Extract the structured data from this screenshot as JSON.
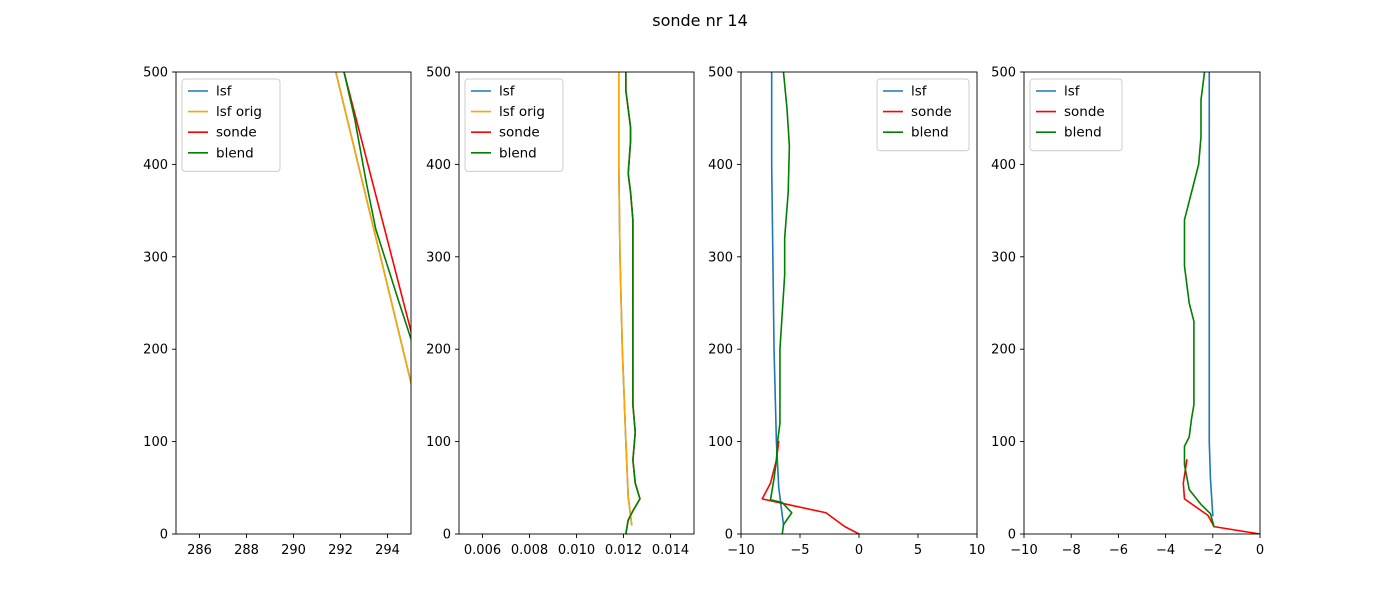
{
  "figure": {
    "title": "sonde nr 14"
  },
  "colors": {
    "lsf": "#1f77b4",
    "lsf_orig": "#ffa500",
    "sonde": "#ff0000",
    "blend": "#008000"
  },
  "chart_data": [
    {
      "type": "line",
      "xlim": [
        285,
        295
      ],
      "ylim": [
        0,
        500
      ],
      "xticks": [
        286,
        288,
        290,
        292,
        294
      ],
      "xtick_labels": [
        "286",
        "288",
        "290",
        "292",
        "294"
      ],
      "yticks": [
        0,
        100,
        200,
        300,
        400,
        500
      ],
      "ytick_labels": [
        "0",
        "100",
        "200",
        "300",
        "400",
        "500"
      ],
      "legend": {
        "location": "upper left",
        "labels": [
          "lsf",
          "lsf orig",
          "sonde",
          "blend"
        ]
      },
      "series": [
        {
          "name": "lsf",
          "color": "#1f77b4",
          "points": [
            [
              295.13,
              150
            ],
            [
              291.8,
              500
            ]
          ]
        },
        {
          "name": "lsf orig",
          "color": "#ffa500",
          "points": [
            [
              295.13,
              150
            ],
            [
              291.8,
              500
            ]
          ]
        },
        {
          "name": "sonde",
          "color": "#ff0000",
          "points": [
            [
              295.4,
              180
            ],
            [
              292.15,
              500
            ]
          ]
        },
        {
          "name": "blend",
          "color": "#008000",
          "points": [
            [
              295.4,
              180
            ],
            [
              294.5,
              250
            ],
            [
              293.5,
              330
            ],
            [
              293.1,
              380
            ],
            [
              292.6,
              450
            ],
            [
              292.15,
              500
            ]
          ]
        }
      ]
    },
    {
      "type": "line",
      "xlim": [
        0.005,
        0.015
      ],
      "ylim": [
        0,
        500
      ],
      "xticks": [
        0.006,
        0.008,
        0.01,
        0.012,
        0.014
      ],
      "xtick_labels": [
        "0.006",
        "0.008",
        "0.010",
        "0.012",
        "0.014"
      ],
      "yticks": [
        0,
        100,
        200,
        300,
        400,
        500
      ],
      "ytick_labels": [
        "0",
        "100",
        "200",
        "300",
        "400",
        "500"
      ],
      "legend": {
        "location": "upper left",
        "labels": [
          "lsf",
          "lsf orig",
          "sonde",
          "blend"
        ]
      },
      "series": [
        {
          "name": "lsf",
          "color": "#1f77b4",
          "points": [
            [
              0.01235,
              10
            ],
            [
              0.0122,
              40
            ],
            [
              0.0121,
              100
            ],
            [
              0.01195,
              200
            ],
            [
              0.01185,
              300
            ],
            [
              0.0118,
              400
            ],
            [
              0.0118,
              500
            ]
          ]
        },
        {
          "name": "lsf orig",
          "color": "#ffa500",
          "points": [
            [
              0.01235,
              10
            ],
            [
              0.0122,
              40
            ],
            [
              0.0121,
              100
            ],
            [
              0.01195,
              200
            ],
            [
              0.01185,
              300
            ],
            [
              0.0118,
              400
            ],
            [
              0.0118,
              500
            ]
          ]
        },
        {
          "name": "sonde",
          "color": "#ff0000",
          "points": [
            [
              0.0121,
              0
            ],
            [
              0.0122,
              15
            ],
            [
              0.0124,
              25
            ],
            [
              0.0127,
              38
            ],
            [
              0.0125,
              55
            ],
            [
              0.0124,
              80
            ],
            [
              0.0125,
              110
            ],
            [
              0.0124,
              140
            ],
            [
              0.0124,
              200
            ],
            [
              0.0124,
              280
            ],
            [
              0.0124,
              340
            ],
            [
              0.0123,
              370
            ],
            [
              0.0122,
              390
            ],
            [
              0.0123,
              425
            ],
            [
              0.0123,
              440
            ],
            [
              0.0122,
              460
            ],
            [
              0.0121,
              480
            ],
            [
              0.0121,
              500
            ]
          ]
        },
        {
          "name": "blend",
          "color": "#008000",
          "points": [
            [
              0.0121,
              0
            ],
            [
              0.0122,
              15
            ],
            [
              0.0124,
              25
            ],
            [
              0.0127,
              38
            ],
            [
              0.0125,
              55
            ],
            [
              0.0124,
              80
            ],
            [
              0.0125,
              110
            ],
            [
              0.0124,
              140
            ],
            [
              0.0124,
              200
            ],
            [
              0.0124,
              280
            ],
            [
              0.0124,
              340
            ],
            [
              0.0123,
              370
            ],
            [
              0.0122,
              390
            ],
            [
              0.0123,
              425
            ],
            [
              0.0123,
              440
            ],
            [
              0.0122,
              460
            ],
            [
              0.0121,
              480
            ],
            [
              0.0121,
              500
            ]
          ]
        }
      ]
    },
    {
      "type": "line",
      "xlim": [
        -10,
        10
      ],
      "ylim": [
        0,
        500
      ],
      "xticks": [
        -10,
        -5,
        0,
        5,
        10
      ],
      "xtick_labels": [
        "−10",
        "−5",
        "0",
        "5",
        "10"
      ],
      "yticks": [
        0,
        100,
        200,
        300,
        400,
        500
      ],
      "ytick_labels": [
        "0",
        "100",
        "200",
        "300",
        "400",
        "500"
      ],
      "legend": {
        "location": "upper right",
        "labels": [
          "lsf",
          "sonde",
          "blend"
        ]
      },
      "series": [
        {
          "name": "lsf",
          "color": "#1f77b4",
          "points": [
            [
              -6.4,
              10
            ],
            [
              -6.8,
              50
            ],
            [
              -7.0,
              100
            ],
            [
              -7.2,
              200
            ],
            [
              -7.3,
              300
            ],
            [
              -7.4,
              400
            ],
            [
              -7.4,
              500
            ]
          ]
        },
        {
          "name": "sonde",
          "color": "#ff0000",
          "points": [
            [
              0,
              0
            ],
            [
              -1.2,
              8
            ],
            [
              -2.8,
              23
            ],
            [
              -6.8,
              34
            ],
            [
              -8.2,
              38
            ],
            [
              -7.5,
              55
            ],
            [
              -7.0,
              80
            ],
            [
              -6.8,
              100
            ]
          ]
        },
        {
          "name": "blend",
          "color": "#008000",
          "points": [
            [
              -6.5,
              0
            ],
            [
              -6.4,
              10
            ],
            [
              -5.7,
              23
            ],
            [
              -6.5,
              34
            ],
            [
              -7.5,
              37
            ],
            [
              -7.2,
              60
            ],
            [
              -7.0,
              80
            ],
            [
              -6.9,
              100
            ],
            [
              -6.7,
              120
            ],
            [
              -6.7,
              200
            ],
            [
              -6.3,
              280
            ],
            [
              -6.3,
              320
            ],
            [
              -6.0,
              370
            ],
            [
              -5.9,
              420
            ],
            [
              -6.1,
              460
            ],
            [
              -6.4,
              500
            ]
          ]
        }
      ]
    },
    {
      "type": "line",
      "xlim": [
        -10,
        0
      ],
      "ylim": [
        0,
        500
      ],
      "xticks": [
        -10,
        -8,
        -6,
        -4,
        -2,
        0
      ],
      "xtick_labels": [
        "−10",
        "−8",
        "−6",
        "−4",
        "−2",
        "0"
      ],
      "yticks": [
        0,
        100,
        200,
        300,
        400,
        500
      ],
      "ytick_labels": [
        "0",
        "100",
        "200",
        "300",
        "400",
        "500"
      ],
      "legend": {
        "location": "upper left",
        "labels": [
          "lsf",
          "sonde",
          "blend"
        ]
      },
      "series": [
        {
          "name": "lsf",
          "color": "#1f77b4",
          "points": [
            [
              -2.0,
              20
            ],
            [
              -2.1,
              60
            ],
            [
              -2.15,
              100
            ],
            [
              -2.15,
              200
            ],
            [
              -2.15,
              300
            ],
            [
              -2.15,
              400
            ],
            [
              -2.15,
              500
            ]
          ]
        },
        {
          "name": "sonde",
          "color": "#ff0000",
          "points": [
            [
              0,
              0
            ],
            [
              -1.95,
              8
            ],
            [
              -2.2,
              20
            ],
            [
              -3.2,
              38
            ],
            [
              -3.25,
              55
            ],
            [
              -3.1,
              80
            ]
          ]
        },
        {
          "name": "blend",
          "color": "#008000",
          "points": [
            [
              -1.95,
              8
            ],
            [
              -2.1,
              22
            ],
            [
              -2.5,
              32
            ],
            [
              -3.0,
              48
            ],
            [
              -3.2,
              75
            ],
            [
              -3.2,
              95
            ],
            [
              -3.0,
              105
            ],
            [
              -2.9,
              125
            ],
            [
              -2.8,
              140
            ],
            [
              -2.8,
              200
            ],
            [
              -2.8,
              230
            ],
            [
              -3.0,
              250
            ],
            [
              -3.1,
              270
            ],
            [
              -3.2,
              290
            ],
            [
              -3.2,
              310
            ],
            [
              -3.2,
              340
            ],
            [
              -2.9,
              370
            ],
            [
              -2.6,
              400
            ],
            [
              -2.5,
              430
            ],
            [
              -2.5,
              470
            ],
            [
              -2.35,
              500
            ]
          ]
        }
      ]
    }
  ]
}
